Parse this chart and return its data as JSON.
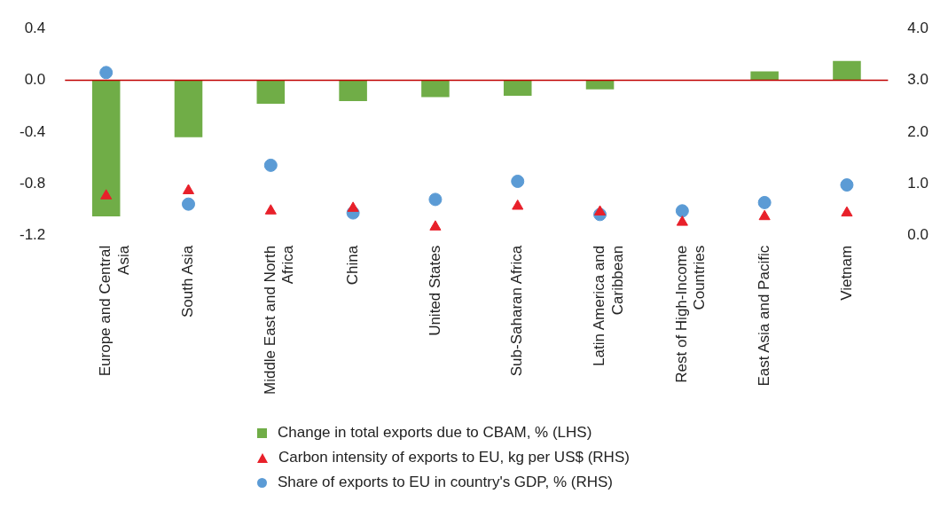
{
  "chart_data": {
    "type": "bar",
    "categories": [
      "Europe and Central Asia",
      "South Asia",
      "Middle East and North Africa",
      "China",
      "United States",
      "Sub-Saharan Africa",
      "Latin America and Caribbean",
      "Rest of High-Income Countries",
      "East Asia and Pacific",
      "Vietnam"
    ],
    "series": [
      {
        "name": "Change in total exports due to CBAM, % (LHS)",
        "color": "#70ad47",
        "values": [
          -1.05,
          -0.44,
          -0.18,
          -0.16,
          -0.13,
          -0.12,
          -0.07,
          0,
          0.07,
          0.15
        ]
      },
      {
        "name": "Carbon intensity of exports to EU, kg per US$ (RHS)",
        "type": "scatter",
        "marker": "triangle",
        "axis": "y2",
        "color": "#e8202a",
        "values": [
          0.77,
          0.87,
          0.48,
          0.53,
          0.17,
          0.57,
          0.46,
          0.26,
          0.37,
          0.44
        ]
      },
      {
        "name": "Share of exports to EU in country's GDP, % (RHS)",
        "type": "scatter",
        "marker": "circle",
        "axis": "y2",
        "color": "#5b9bd5",
        "values": [
          3.15,
          0.61,
          1.36,
          0.44,
          0.7,
          1.05,
          0.41,
          0.48,
          0.64,
          0.98
        ]
      }
    ],
    "ylim": [
      -1.2,
      0.4
    ],
    "yticks": [
      {
        "value": -1.2,
        "label": "-1.2"
      },
      {
        "value": -0.8,
        "label": "-0.8"
      },
      {
        "value": -0.4,
        "label": "-0.4"
      },
      {
        "value": 0,
        "label": "0.0"
      },
      {
        "value": 0.4,
        "label": "0.4"
      }
    ],
    "y2lim": [
      0,
      4
    ],
    "y2ticks": [
      {
        "value": 0,
        "label": "0.0"
      },
      {
        "value": 1,
        "label": "1.0"
      },
      {
        "value": 2,
        "label": "2.0"
      },
      {
        "value": 3,
        "label": "3.0"
      },
      {
        "value": 4,
        "label": "4.0"
      }
    ],
    "ref_lines": [
      {
        "axis": "y",
        "value": 0,
        "color": "#c00000"
      }
    ],
    "grid": false,
    "legend": "bottom"
  }
}
